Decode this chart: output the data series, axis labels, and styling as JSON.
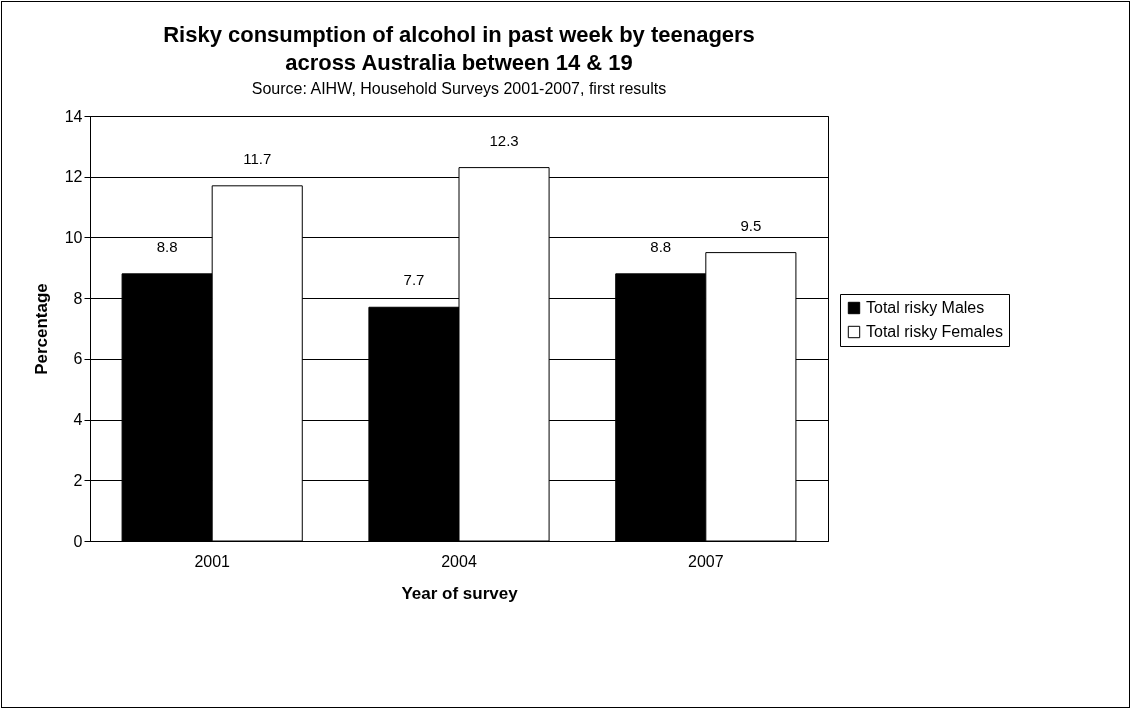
{
  "chart_data": {
    "type": "bar",
    "title": "Risky consumption of alcohol in past week by teenagers across Australia between 14 & 19",
    "annotations": [
      "Source: AIHW, Household Surveys 2001-2007, first results"
    ],
    "xlabel": "Year of survey",
    "ylabel": "Percentage",
    "categories": [
      "2001",
      "2004",
      "2007"
    ],
    "series": [
      {
        "name": "Total risky Males",
        "color": "#000000",
        "values": [
          8.8,
          7.7,
          8.8
        ]
      },
      {
        "name": "Total risky Females",
        "color": "#ffffff",
        "values": [
          11.7,
          12.3,
          9.5
        ]
      }
    ],
    "ylim": [
      0,
      14
    ],
    "yticks": [
      0,
      2,
      4,
      6,
      8,
      10,
      12,
      14
    ],
    "grid": "y",
    "legend": "right",
    "data_labels": true
  }
}
